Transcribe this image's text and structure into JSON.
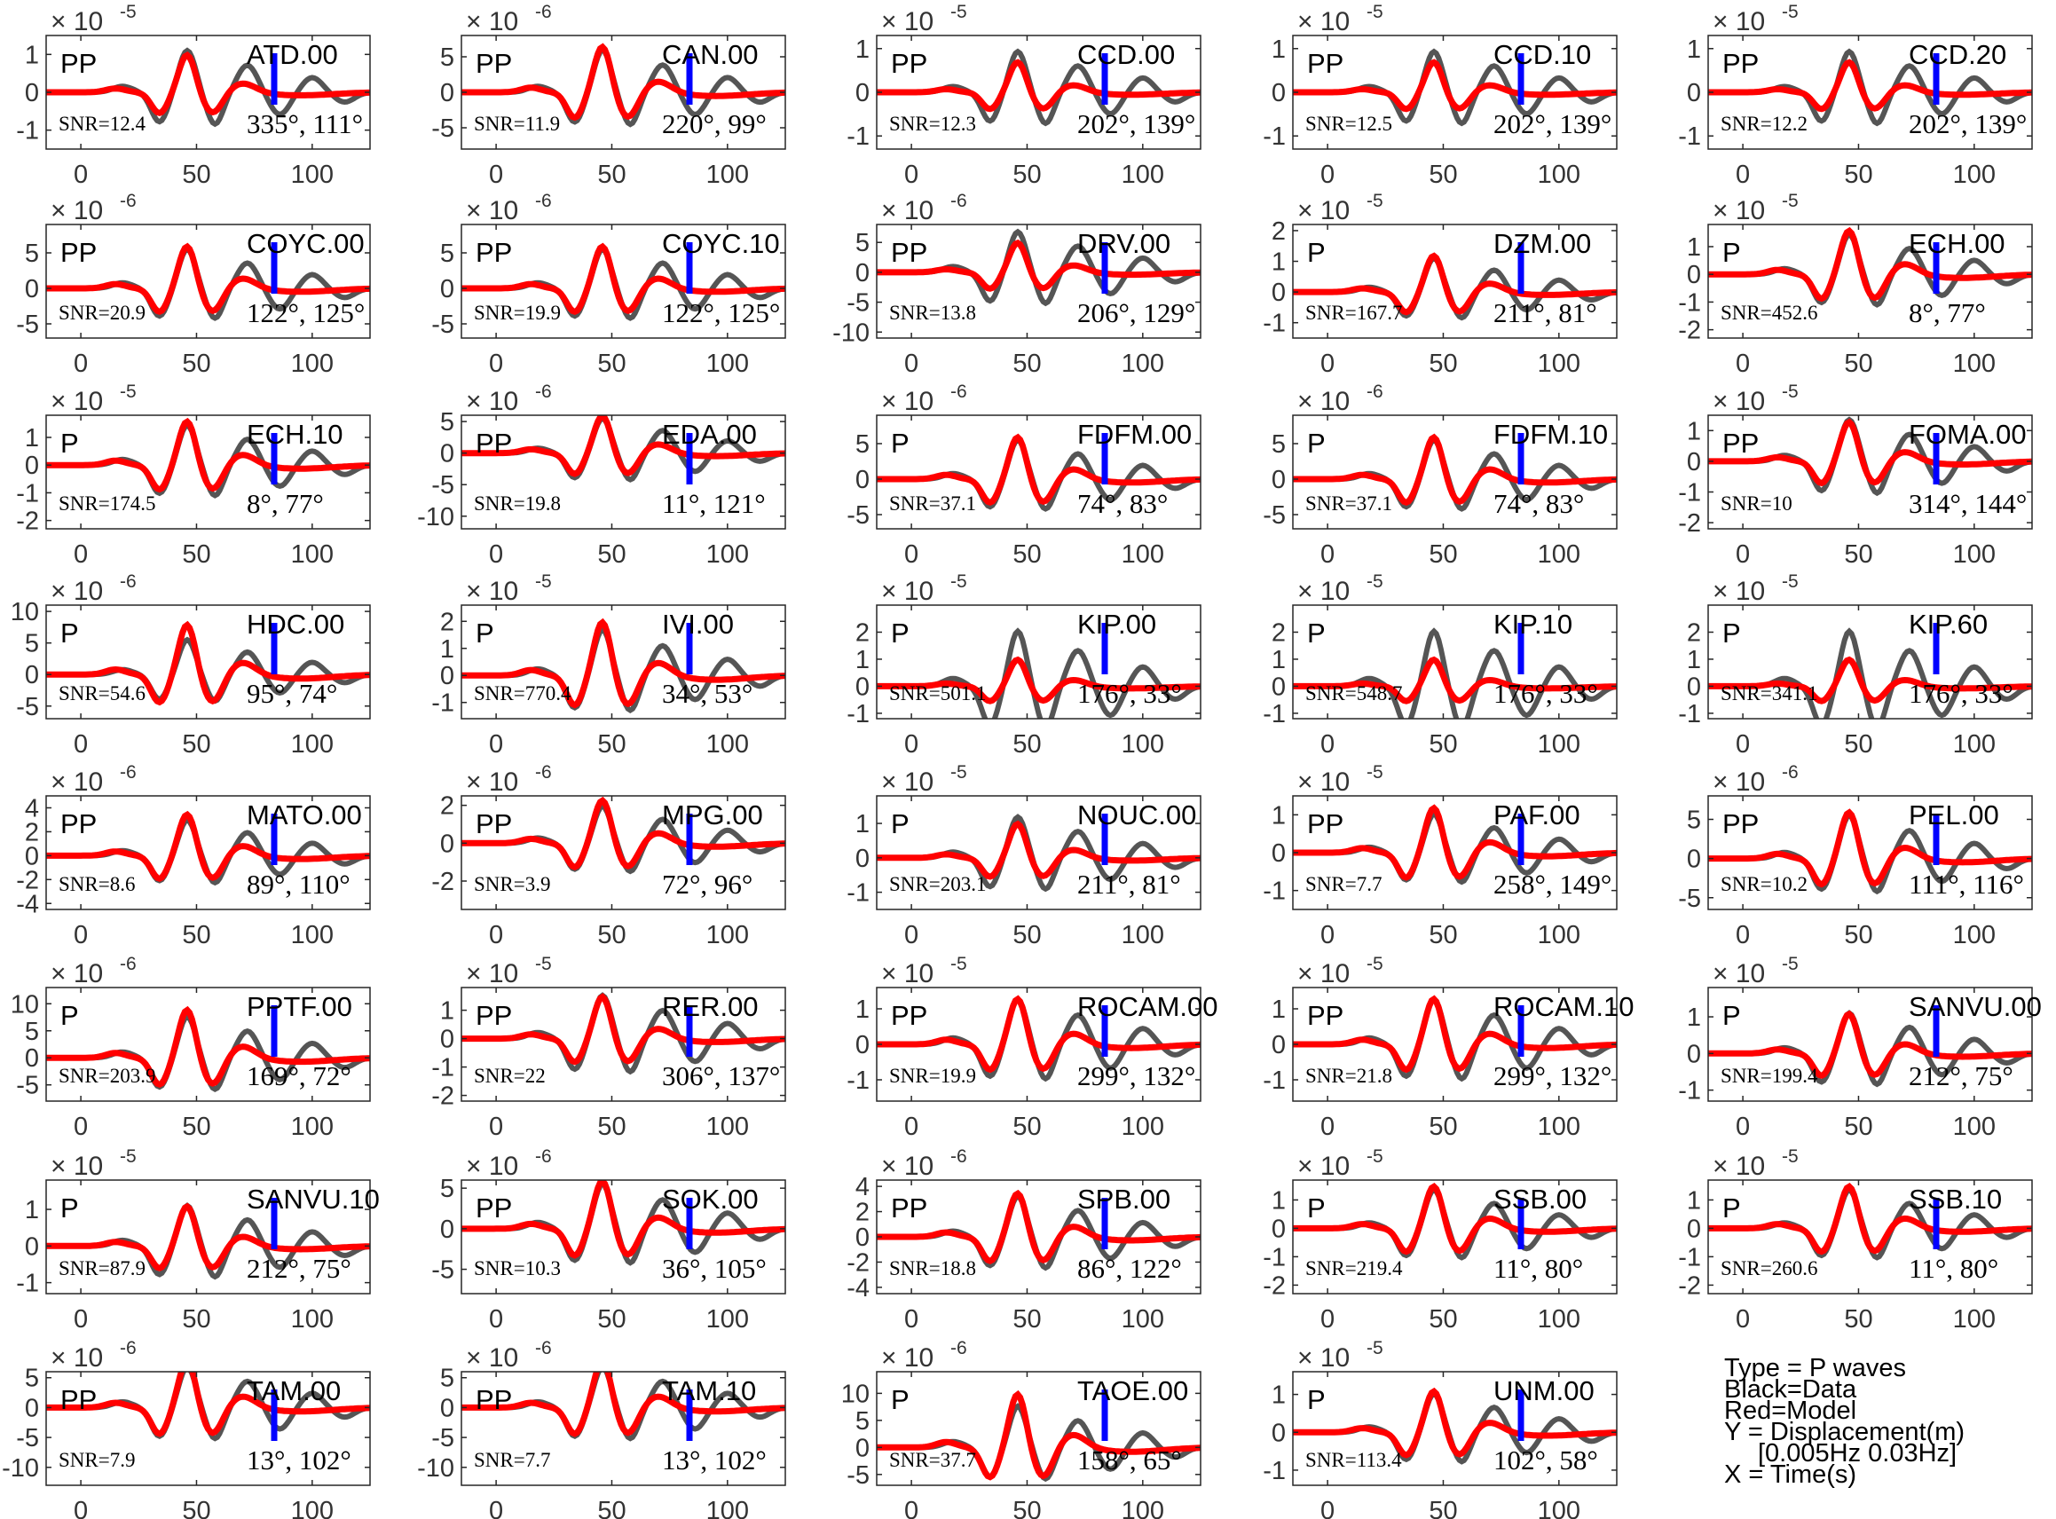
{
  "chart_data": {
    "type": "line",
    "panel_order": "row-major, 5 columns, 8 rows",
    "shared_axes": {
      "x_range": [
        -15,
        125
      ],
      "x_ticks": [
        0,
        50,
        100
      ],
      "grid": false
    },
    "series_colors": {
      "data": "#555555",
      "model": "#ff0000",
      "marker": "#0000ff"
    },
    "panels": [
      {
        "station": "ATD.00",
        "phase": "PP",
        "exponent": "-5",
        "yticks": [
          "1",
          "0",
          "-1"
        ],
        "yrange": [
          -1.5,
          1.5
        ],
        "snr": "SNR=12.4",
        "angles": "335°, 111°",
        "amp": 1.0,
        "damp": 1.3
      },
      {
        "station": "CAN.00",
        "phase": "PP",
        "exponent": "-6",
        "yticks": [
          "5",
          "0",
          "-5"
        ],
        "yrange": [
          -8,
          8
        ],
        "snr": "SNR=11.9",
        "angles": "220°, 99°",
        "amp": 6.5,
        "damp": 7
      },
      {
        "station": "CCD.00",
        "phase": "PP",
        "exponent": "-5",
        "yticks": [
          "1",
          "0",
          "-1"
        ],
        "yrange": [
          -1.3,
          1.3
        ],
        "snr": "SNR=12.3",
        "angles": "202°, 139°",
        "amp": 0.7,
        "damp": 1.1
      },
      {
        "station": "CCD.10",
        "phase": "PP",
        "exponent": "-5",
        "yticks": [
          "1",
          "0",
          "-1"
        ],
        "yrange": [
          -1.3,
          1.3
        ],
        "snr": "SNR=12.5",
        "angles": "202°, 139°",
        "amp": 0.7,
        "damp": 1.1
      },
      {
        "station": "CCD.20",
        "phase": "PP",
        "exponent": "-5",
        "yticks": [
          "1",
          "0",
          "-1"
        ],
        "yrange": [
          -1.3,
          1.3
        ],
        "snr": "SNR=12.2",
        "angles": "202°, 139°",
        "amp": 0.7,
        "damp": 1.1
      },
      {
        "station": "COYC.00",
        "phase": "PP",
        "exponent": "-6",
        "yticks": [
          "5",
          "0",
          "-5"
        ],
        "yrange": [
          -7,
          9
        ],
        "snr": "SNR=20.9",
        "angles": "122°, 125°",
        "amp": 6,
        "damp": 6.5
      },
      {
        "station": "COYC.10",
        "phase": "PP",
        "exponent": "-6",
        "yticks": [
          "5",
          "0",
          "-5"
        ],
        "yrange": [
          -7,
          9
        ],
        "snr": "SNR=19.9",
        "angles": "122°, 125°",
        "amp": 6,
        "damp": 6.5
      },
      {
        "station": "DRV.00",
        "phase": "PP",
        "exponent": "-6",
        "yticks": [
          "5",
          "0",
          "-5",
          "-10"
        ],
        "yrange": [
          -11,
          8
        ],
        "snr": "SNR=13.8",
        "angles": "206°, 129°",
        "amp": 5,
        "damp": 8
      },
      {
        "station": "DZM.00",
        "phase": "P",
        "exponent": "-5",
        "yticks": [
          "2",
          "1",
          "0",
          "-1"
        ],
        "yrange": [
          -1.5,
          2.2
        ],
        "snr": "SNR=167.7",
        "angles": "211°, 81°",
        "amp": 1.2,
        "damp": 1.3
      },
      {
        "station": "ECH.00",
        "phase": "P",
        "exponent": "-5",
        "yticks": [
          "1",
          "0",
          "-1",
          "-2"
        ],
        "yrange": [
          -2.3,
          1.8
        ],
        "snr": "SNR=452.6",
        "angles": "8°, 77°",
        "amp": 1.6,
        "damp": 1.7
      },
      {
        "station": "ECH.10",
        "phase": "P",
        "exponent": "-5",
        "yticks": [
          "1",
          "0",
          "-1",
          "-2"
        ],
        "yrange": [
          -2.3,
          1.8
        ],
        "snr": "SNR=174.5",
        "angles": "8°, 77°",
        "amp": 1.6,
        "damp": 1.7
      },
      {
        "station": "EDA.00",
        "phase": "PP",
        "exponent": "-6",
        "yticks": [
          "5",
          "0",
          "-5",
          "-10"
        ],
        "yrange": [
          -12,
          6
        ],
        "snr": "SNR=19.8",
        "angles": "11°, 121°",
        "amp": 6,
        "damp": 6.5
      },
      {
        "station": "FDFM.00",
        "phase": "P",
        "exponent": "-6",
        "yticks": [
          "5",
          "0",
          "-5"
        ],
        "yrange": [
          -7,
          9
        ],
        "snr": "SNR=37.1",
        "angles": "74°, 83°",
        "amp": 6,
        "damp": 6.5
      },
      {
        "station": "FDFM.10",
        "phase": "P",
        "exponent": "-6",
        "yticks": [
          "5",
          "0",
          "-5"
        ],
        "yrange": [
          -7,
          9
        ],
        "snr": "SNR=37.1",
        "angles": "74°, 83°",
        "amp": 6,
        "damp": 6.5
      },
      {
        "station": "FOMA.00",
        "phase": "PP",
        "exponent": "-5",
        "yticks": [
          "1",
          "0",
          "-1",
          "-2"
        ],
        "yrange": [
          -2.2,
          1.5
        ],
        "snr": "SNR=10",
        "angles": "314°, 144°",
        "amp": 1.3,
        "damp": 1.6
      },
      {
        "station": "HDC.00",
        "phase": "P",
        "exponent": "-6",
        "yticks": [
          "10",
          "5",
          "0",
          "-5"
        ],
        "yrange": [
          -7,
          11
        ],
        "snr": "SNR=54.6",
        "angles": "95°, 74°",
        "amp": 8,
        "damp": 6.5
      },
      {
        "station": "IVI.00",
        "phase": "P",
        "exponent": "-5",
        "yticks": [
          "2",
          "1",
          "0",
          "-1"
        ],
        "yrange": [
          -1.6,
          2.6
        ],
        "snr": "SNR=770.4",
        "angles": "34°, 53°",
        "amp": 2,
        "damp": 2
      },
      {
        "station": "KIP.00",
        "phase": "P",
        "exponent": "-5",
        "yticks": [
          "2",
          "1",
          "0",
          "-1"
        ],
        "yrange": [
          -1.2,
          3
        ],
        "snr": "SNR=501.1",
        "angles": "176°, 33°",
        "amp": 1.0,
        "damp": 2.4
      },
      {
        "station": "KIP.10",
        "phase": "P",
        "exponent": "-5",
        "yticks": [
          "2",
          "1",
          "0",
          "-1"
        ],
        "yrange": [
          -1.2,
          3
        ],
        "snr": "SNR=548.7",
        "angles": "176°, 33°",
        "amp": 1.0,
        "damp": 2.4
      },
      {
        "station": "KIP.60",
        "phase": "P",
        "exponent": "-5",
        "yticks": [
          "2",
          "1",
          "0",
          "-1"
        ],
        "yrange": [
          -1.2,
          3
        ],
        "snr": "SNR=341.1",
        "angles": "176°, 33°",
        "amp": 1.0,
        "damp": 2.4
      },
      {
        "station": "MATO.00",
        "phase": "PP",
        "exponent": "-6",
        "yticks": [
          "4",
          "2",
          "0",
          "-2",
          "-4"
        ],
        "yrange": [
          -4.5,
          5
        ],
        "snr": "SNR=8.6",
        "angles": "89°, 110°",
        "amp": 3.5,
        "damp": 3.5
      },
      {
        "station": "MPG.00",
        "phase": "PP",
        "exponent": "-6",
        "yticks": [
          "2",
          "0",
          "-2"
        ],
        "yrange": [
          -3.5,
          2.5
        ],
        "snr": "SNR=3.9",
        "angles": "72°, 96°",
        "amp": 2.3,
        "damp": 2.3
      },
      {
        "station": "NOUC.00",
        "phase": "P",
        "exponent": "-5",
        "yticks": [
          "1",
          "0",
          "-1"
        ],
        "yrange": [
          -1.5,
          1.8
        ],
        "snr": "SNR=203.1",
        "angles": "211°, 81°",
        "amp": 1.0,
        "damp": 1.4
      },
      {
        "station": "PAF.00",
        "phase": "PP",
        "exponent": "-5",
        "yticks": [
          "1",
          "0",
          "-1"
        ],
        "yrange": [
          -1.5,
          1.5
        ],
        "snr": "SNR=7.7",
        "angles": "258°, 149°",
        "amp": 1.2,
        "damp": 1.2
      },
      {
        "station": "PEL.00",
        "phase": "PP",
        "exponent": "-6",
        "yticks": [
          "5",
          "0",
          "-5"
        ],
        "yrange": [
          -6.5,
          8
        ],
        "snr": "SNR=10.2",
        "angles": "111°, 116°",
        "amp": 6,
        "damp": 6.5
      },
      {
        "station": "PPTF.00",
        "phase": "P",
        "exponent": "-6",
        "yticks": [
          "10",
          "5",
          "0",
          "-5"
        ],
        "yrange": [
          -8,
          13
        ],
        "snr": "SNR=203.9",
        "angles": "169°, 72°",
        "amp": 9,
        "damp": 9
      },
      {
        "station": "RER.00",
        "phase": "PP",
        "exponent": "-5",
        "yticks": [
          "1",
          "0",
          "-1",
          "-2"
        ],
        "yrange": [
          -2.2,
          1.8
        ],
        "snr": "SNR=22",
        "angles": "306°, 137°",
        "amp": 1.5,
        "damp": 1.8
      },
      {
        "station": "ROCAM.00",
        "phase": "PP",
        "exponent": "-5",
        "yticks": [
          "1",
          "0",
          "-1"
        ],
        "yrange": [
          -1.6,
          1.6
        ],
        "snr": "SNR=19.9",
        "angles": "299°, 132°",
        "amp": 1.3,
        "damp": 1.5
      },
      {
        "station": "ROCAM.10",
        "phase": "PP",
        "exponent": "-5",
        "yticks": [
          "1",
          "0",
          "-1"
        ],
        "yrange": [
          -1.6,
          1.6
        ],
        "snr": "SNR=21.8",
        "angles": "299°, 132°",
        "amp": 1.3,
        "damp": 1.5
      },
      {
        "station": "SANVU.00",
        "phase": "P",
        "exponent": "-5",
        "yticks": [
          "1",
          "0",
          "-1"
        ],
        "yrange": [
          -1.3,
          1.8
        ],
        "snr": "SNR=199.4",
        "angles": "212°, 75°",
        "amp": 1.1,
        "damp": 1.3
      },
      {
        "station": "SANVU.10",
        "phase": "P",
        "exponent": "-5",
        "yticks": [
          "1",
          "0",
          "-1"
        ],
        "yrange": [
          -1.3,
          1.8
        ],
        "snr": "SNR=87.9",
        "angles": "212°, 75°",
        "amp": 1.1,
        "damp": 1.3
      },
      {
        "station": "SOK.00",
        "phase": "PP",
        "exponent": "-6",
        "yticks": [
          "5",
          "0",
          "-5"
        ],
        "yrange": [
          -8,
          6
        ],
        "snr": "SNR=10.3",
        "angles": "36°, 105°",
        "amp": 6,
        "damp": 6.5
      },
      {
        "station": "SPB.00",
        "phase": "PP",
        "exponent": "-6",
        "yticks": [
          "4",
          "2",
          "0",
          "-2",
          "-4"
        ],
        "yrange": [
          -4.5,
          4.5
        ],
        "snr": "SNR=18.8",
        "angles": "86°, 122°",
        "amp": 3.5,
        "damp": 3.8
      },
      {
        "station": "SSB.00",
        "phase": "P",
        "exponent": "-5",
        "yticks": [
          "1",
          "0",
          "-1",
          "-2"
        ],
        "yrange": [
          -2.3,
          1.7
        ],
        "snr": "SNR=219.4",
        "angles": "11°, 80°",
        "amp": 1.5,
        "damp": 1.6
      },
      {
        "station": "SSB.10",
        "phase": "P",
        "exponent": "-5",
        "yticks": [
          "1",
          "0",
          "-1",
          "-2"
        ],
        "yrange": [
          -2.3,
          1.7
        ],
        "snr": "SNR=260.6",
        "angles": "11°, 80°",
        "amp": 1.5,
        "damp": 1.6
      },
      {
        "station": "TAM.00",
        "phase": "PP",
        "exponent": "-6",
        "yticks": [
          "5",
          "0",
          "-5",
          "-10"
        ],
        "yrange": [
          -13,
          6
        ],
        "snr": "SNR=7.9",
        "angles": "13°, 102°",
        "amp": 8,
        "damp": 8
      },
      {
        "station": "TAM.10",
        "phase": "PP",
        "exponent": "-6",
        "yticks": [
          "5",
          "0",
          "-5",
          "-10"
        ],
        "yrange": [
          -13,
          6
        ],
        "snr": "SNR=7.7",
        "angles": "13°, 102°",
        "amp": 8,
        "damp": 8
      },
      {
        "station": "TAOE.00",
        "phase": "P",
        "exponent": "-6",
        "yticks": [
          "10",
          "5",
          "0",
          "-5"
        ],
        "yrange": [
          -7,
          14
        ],
        "snr": "SNR=37.7",
        "angles": "158°, 65°",
        "amp": 10,
        "damp": 9
      },
      {
        "station": "UNM.00",
        "phase": "P",
        "exponent": "-5",
        "yticks": [
          "1",
          "0",
          "-1"
        ],
        "yrange": [
          -1.4,
          1.6
        ],
        "snr": "SNR=113.4",
        "angles": "102°, 58°",
        "amp": 1.1,
        "damp": 1.2
      }
    ]
  },
  "legend": {
    "line1": "Type = P waves",
    "line2": "Black=Data",
    "line3": "Red=Model",
    "line4": "Y = Displacement(m)",
    "line5": "[0.005Hz 0.03Hz]",
    "line6": "X = Time(s)"
  }
}
